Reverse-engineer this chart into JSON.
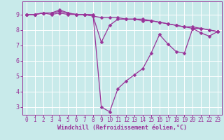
{
  "background_color": "#c8eaea",
  "grid_color": "#b0d8d8",
  "line_color": "#993399",
  "marker_color": "#993399",
  "xlabel": "Windchill (Refroidissement éolien,°C)",
  "xlabel_color": "#993399",
  "tick_color": "#993399",
  "spine_color": "#993399",
  "xlim": [
    -0.5,
    23.5
  ],
  "ylim": [
    2.5,
    9.85
  ],
  "yticks": [
    3,
    4,
    5,
    6,
    7,
    8,
    9
  ],
  "xticks": [
    0,
    1,
    2,
    3,
    4,
    5,
    6,
    7,
    8,
    9,
    10,
    11,
    12,
    13,
    14,
    15,
    16,
    17,
    18,
    19,
    20,
    21,
    22,
    23
  ],
  "series": [
    [
      9.0,
      9.0,
      9.1,
      9.1,
      9.3,
      9.1,
      9.0,
      9.0,
      9.0,
      3.0,
      2.7,
      4.2,
      4.7,
      5.1,
      5.5,
      6.5,
      7.7,
      7.1,
      6.6,
      6.5,
      8.1,
      7.8,
      7.6,
      7.9
    ],
    [
      9.0,
      9.0,
      9.1,
      9.1,
      9.2,
      9.1,
      9.0,
      9.0,
      8.9,
      7.2,
      8.3,
      8.7,
      8.7,
      8.7,
      8.7,
      8.6,
      8.5,
      8.4,
      8.3,
      8.2,
      8.2,
      8.1,
      8.0,
      7.9
    ],
    [
      9.0,
      9.0,
      9.1,
      9.0,
      9.1,
      9.0,
      9.0,
      9.0,
      8.9,
      8.8,
      8.8,
      8.8,
      8.7,
      8.7,
      8.6,
      8.6,
      8.5,
      8.4,
      8.3,
      8.2,
      8.1,
      8.1,
      8.0,
      7.9
    ]
  ],
  "marker_size": 2.5,
  "line_width": 0.9,
  "tick_fontsize": 5.5,
  "xlabel_fontsize": 6.0
}
